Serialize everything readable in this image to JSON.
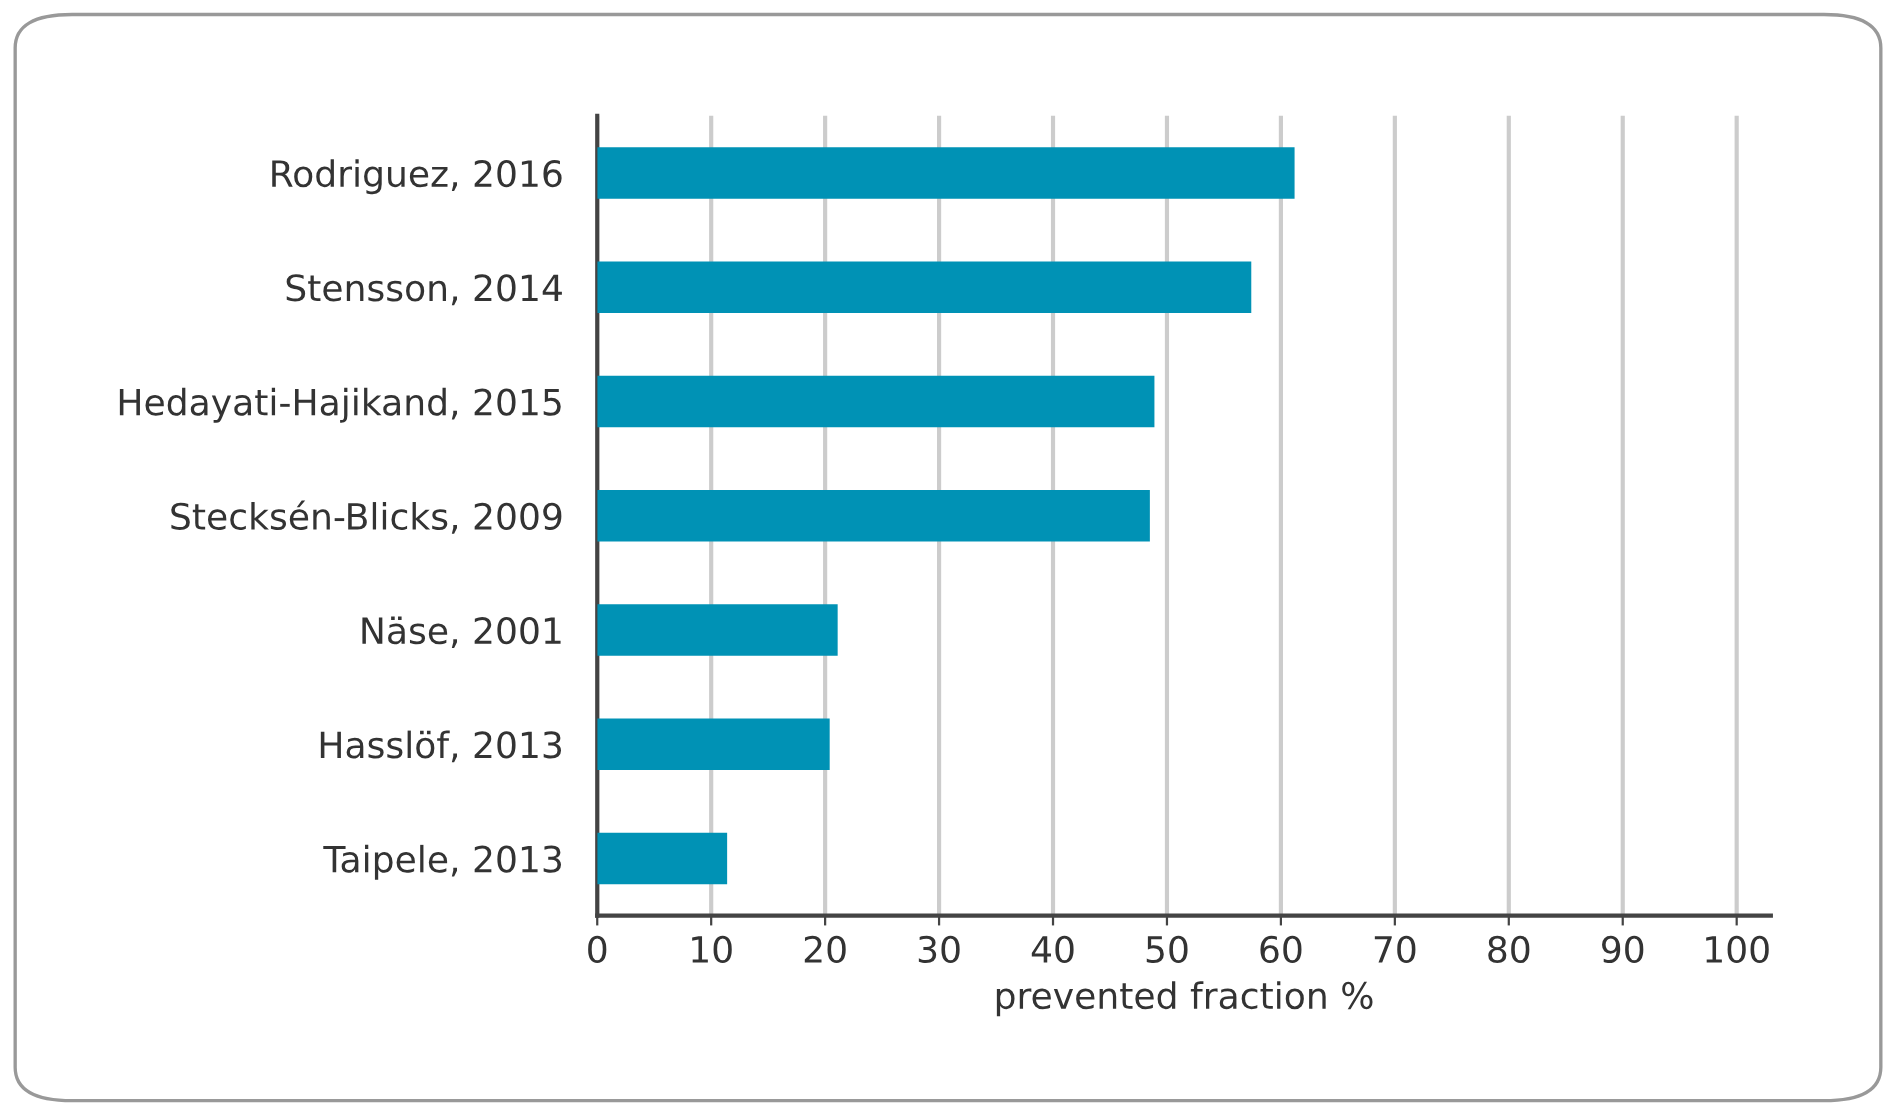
{
  "chart_data": {
    "type": "bar",
    "orientation": "horizontal",
    "categories": [
      "Rodriguez, 2016",
      "Stensson, 2014",
      "Hedayati-Hajikand, 2015",
      "Stecksén-Blicks, 2009",
      "Näse, 2001",
      "Hasslöf, 2013",
      "Taipele, 2013"
    ],
    "values": [
      61.2,
      57.4,
      48.9,
      48.5,
      21.1,
      20.4,
      11.4
    ],
    "color": "#0092b5",
    "xlabel": "prevented fraction %",
    "xlim": [
      0,
      103
    ],
    "xticks": [
      0,
      10,
      20,
      30,
      40,
      50,
      60,
      70,
      80,
      90,
      100
    ],
    "grid": "x",
    "legend": false
  }
}
